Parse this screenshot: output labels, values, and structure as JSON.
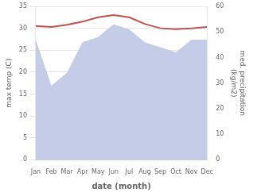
{
  "chart_data": {
    "type": "line",
    "categories": [
      "Jan",
      "Feb",
      "Mar",
      "Apr",
      "May",
      "Jun",
      "Jul",
      "Aug",
      "Sep",
      "Oct",
      "Nov",
      "Dec"
    ],
    "series": [
      {
        "type": "area",
        "axis": "y2",
        "color": "#c5cce8",
        "values": [
          47,
          29,
          34,
          46,
          48,
          53,
          51,
          46,
          44,
          42,
          47,
          47
        ]
      },
      {
        "type": "line",
        "color": "#c0504d",
        "values": [
          30.5,
          30.3,
          30.8,
          31.5,
          32.5,
          33.0,
          32.5,
          31.0,
          30.0,
          29.8,
          30.0,
          30.3
        ]
      }
    ],
    "xlabel": "date (month)",
    "ylabel": "max temp (C)",
    "y2label": "med. precipitation\n(kg/m2)",
    "ylim": [
      0,
      35
    ],
    "yticks": [
      0,
      5,
      10,
      15,
      20,
      25,
      30,
      35
    ],
    "y2lim": [
      0,
      60
    ],
    "y2ticks": [
      0,
      10,
      20,
      30,
      40,
      50,
      60
    ],
    "grid": true
  }
}
